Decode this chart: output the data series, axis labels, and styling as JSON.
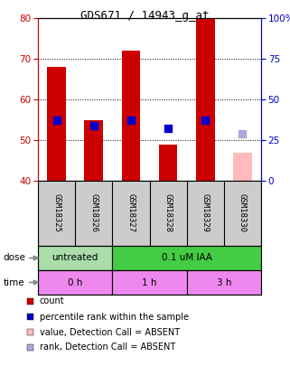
{
  "title": "GDS671 / 14943_g_at",
  "samples": [
    "GSM18325",
    "GSM18326",
    "GSM18327",
    "GSM18328",
    "GSM18329",
    "GSM18330"
  ],
  "bar_values": [
    68,
    55,
    72,
    49,
    80,
    47
  ],
  "bar_colors": [
    "#cc0000",
    "#cc0000",
    "#cc0000",
    "#cc0000",
    "#cc0000",
    "#ffbbbb"
  ],
  "rank_values": [
    55,
    53.5,
    55,
    53,
    55,
    51.5
  ],
  "rank_colors": [
    "#0000cc",
    "#0000cc",
    "#0000cc",
    "#0000cc",
    "#0000cc",
    "#aaaadd"
  ],
  "ylim_left": [
    40,
    80
  ],
  "ylim_right": [
    0,
    100
  ],
  "yticks_left": [
    40,
    50,
    60,
    70,
    80
  ],
  "yticks_right": [
    0,
    25,
    50,
    75,
    100
  ],
  "ytick_labels_right": [
    "0",
    "25",
    "50",
    "75",
    "100%"
  ],
  "dose_groups": [
    {
      "label": "untreated",
      "start": 0,
      "end": 2,
      "color": "#aaddaa"
    },
    {
      "label": "0.1 uM IAA",
      "start": 2,
      "end": 6,
      "color": "#44cc44"
    }
  ],
  "time_groups": [
    {
      "label": "0 h",
      "start": 0,
      "end": 2,
      "color": "#ee88ee"
    },
    {
      "label": "1 h",
      "start": 2,
      "end": 4,
      "color": "#ee88ee"
    },
    {
      "label": "3 h",
      "start": 4,
      "end": 6,
      "color": "#ee88ee"
    }
  ],
  "legend_items": [
    {
      "color": "#cc0000",
      "label": "count"
    },
    {
      "color": "#0000cc",
      "label": "percentile rank within the sample"
    },
    {
      "color": "#ffbbbb",
      "label": "value, Detection Call = ABSENT"
    },
    {
      "color": "#aaaadd",
      "label": "rank, Detection Call = ABSENT"
    }
  ],
  "bar_width": 0.5,
  "rank_marker_size": 36,
  "left_axis_color": "#cc0000",
  "right_axis_color": "#0000bb",
  "background_color": "#ffffff",
  "plot_bg_color": "#ffffff",
  "label_area_color": "#cccccc",
  "arrow_color": "#888888"
}
